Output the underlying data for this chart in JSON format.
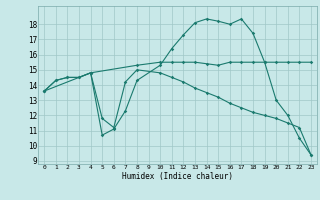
{
  "xlabel": "Humidex (Indice chaleur)",
  "xlim": [
    -0.5,
    23.5
  ],
  "ylim": [
    8.8,
    19.2
  ],
  "yticks": [
    9,
    10,
    11,
    12,
    13,
    14,
    15,
    16,
    17,
    18
  ],
  "xticks": [
    0,
    1,
    2,
    3,
    4,
    5,
    6,
    7,
    8,
    9,
    10,
    11,
    12,
    13,
    14,
    15,
    16,
    17,
    18,
    19,
    20,
    21,
    22,
    23
  ],
  "background_color": "#c8e8e8",
  "grid_color": "#a0c8c8",
  "line_color": "#1a7a6e",
  "lines": [
    {
      "x": [
        0,
        1,
        2,
        3,
        4,
        8,
        10,
        11,
        12,
        13,
        14,
        15,
        16,
        17,
        18,
        19,
        20,
        21,
        22,
        23
      ],
      "y": [
        13.6,
        14.3,
        14.5,
        14.5,
        14.8,
        15.3,
        15.5,
        15.5,
        15.5,
        15.5,
        15.4,
        15.3,
        15.5,
        15.5,
        15.5,
        15.5,
        15.5,
        15.5,
        15.5,
        15.5
      ]
    },
    {
      "x": [
        0,
        1,
        2,
        3,
        4,
        5,
        6,
        7,
        8,
        10,
        11,
        12,
        13,
        14,
        15,
        16,
        17,
        18,
        19,
        20,
        21,
        22,
        23
      ],
      "y": [
        13.6,
        14.3,
        14.5,
        14.5,
        14.8,
        10.7,
        11.1,
        12.3,
        14.3,
        15.3,
        16.4,
        17.3,
        18.1,
        18.35,
        18.2,
        18.0,
        18.35,
        17.4,
        15.5,
        13.0,
        12.0,
        10.5,
        9.4
      ]
    },
    {
      "x": [
        0,
        4,
        5,
        6,
        7,
        8,
        10,
        11,
        12,
        13,
        14,
        15,
        16,
        17,
        18,
        19,
        20,
        21,
        22,
        23
      ],
      "y": [
        13.6,
        14.8,
        11.8,
        11.2,
        14.2,
        15.0,
        14.8,
        14.5,
        14.2,
        13.8,
        13.5,
        13.2,
        12.8,
        12.5,
        12.2,
        12.0,
        11.8,
        11.5,
        11.2,
        9.4
      ]
    }
  ]
}
